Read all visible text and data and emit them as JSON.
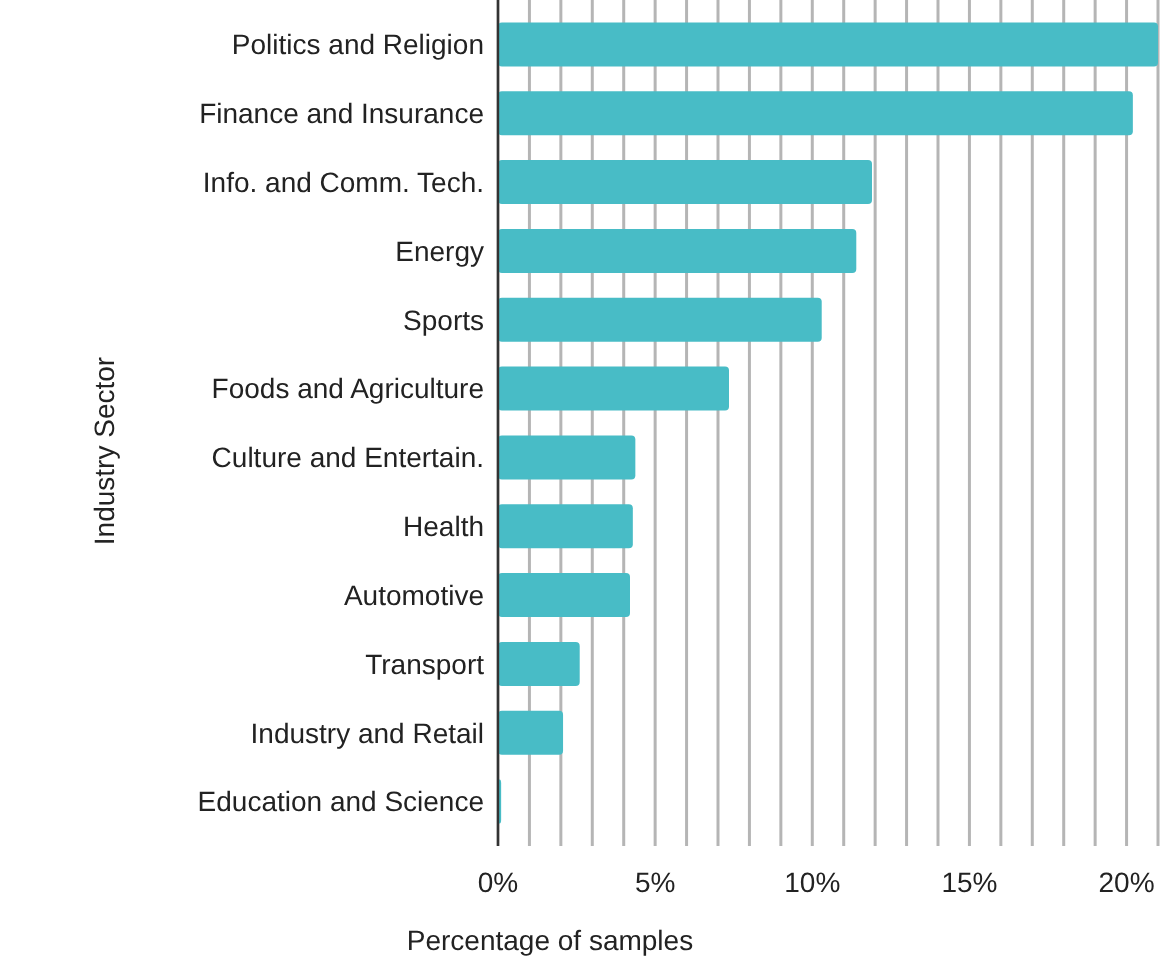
{
  "chart_data": {
    "type": "bar",
    "orientation": "horizontal",
    "xlabel": "Percentage of samples",
    "ylabel": "Industry Sector",
    "categories": [
      "Politics and Religion",
      "Finance and Insurance",
      "Info. and Comm. Tech.",
      "Energy",
      "Sports",
      "Foods and Agriculture",
      "Culture and Entertain.",
      "Health",
      "Automotive",
      "Transport",
      "Industry and Retail",
      "Education and Science"
    ],
    "values": [
      21,
      20.2,
      11.9,
      11.4,
      10.3,
      7.35,
      4.37,
      4.29,
      4.2,
      2.6,
      2.07,
      0.1
    ],
    "color": "#48bcc6",
    "xlim": [
      0,
      21
    ],
    "xticks": [
      {
        "value": 0,
        "label": "0%"
      },
      {
        "value": 1,
        "label": null
      },
      {
        "value": 2,
        "label": null
      },
      {
        "value": 3,
        "label": null
      },
      {
        "value": 4,
        "label": null
      },
      {
        "value": 5,
        "label": "5%"
      },
      {
        "value": 6,
        "label": null
      },
      {
        "value": 7,
        "label": null
      },
      {
        "value": 8,
        "label": null
      },
      {
        "value": 9,
        "label": null
      },
      {
        "value": 10,
        "label": "10%"
      },
      {
        "value": 11,
        "label": null
      },
      {
        "value": 12,
        "label": null
      },
      {
        "value": 13,
        "label": null
      },
      {
        "value": 14,
        "label": null
      },
      {
        "value": 15,
        "label": "15%"
      },
      {
        "value": 16,
        "label": null
      },
      {
        "value": 17,
        "label": null
      },
      {
        "value": 18,
        "label": null
      },
      {
        "value": 19,
        "label": null
      },
      {
        "value": 20,
        "label": "20%"
      },
      {
        "value": 21,
        "label": null
      }
    ],
    "grid": "x"
  }
}
